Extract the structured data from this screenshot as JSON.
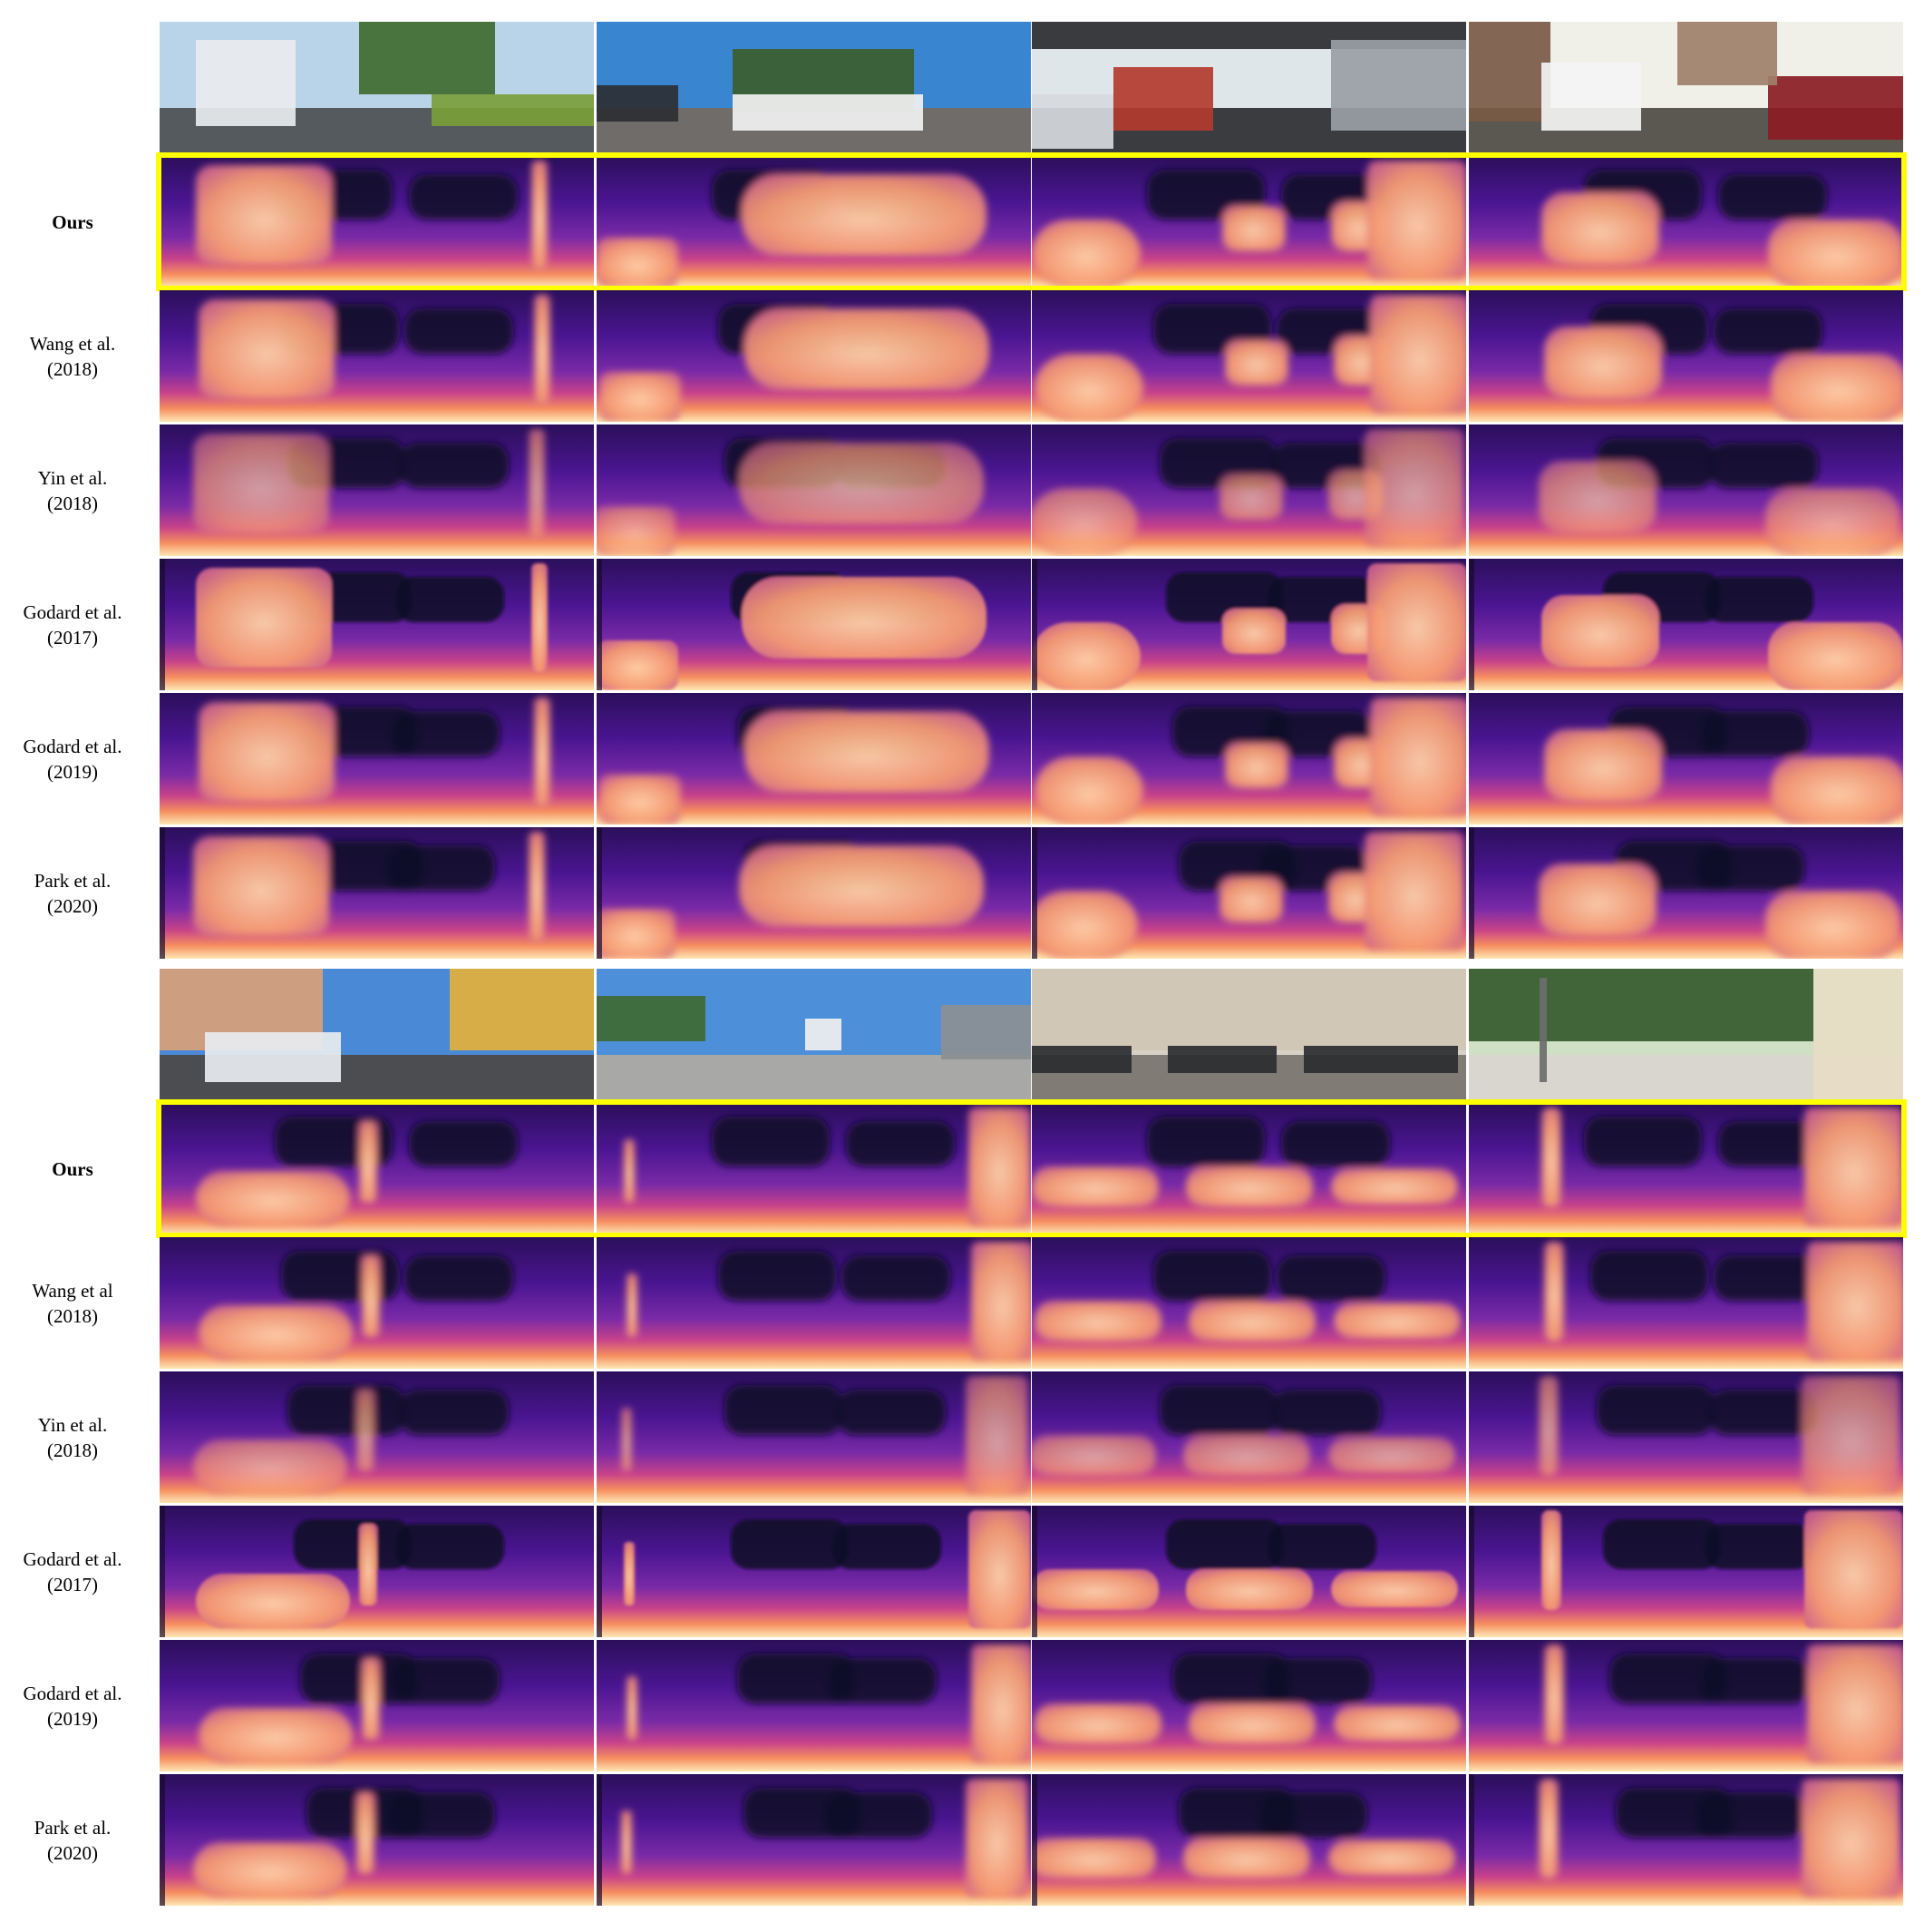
{
  "figure": {
    "groups": [
      {
        "rows": [
          {
            "label_line1": "",
            "label_line2": "",
            "kind": "rgb",
            "bold": false
          },
          {
            "label_line1": "Ours",
            "label_line2": "",
            "kind": "depth",
            "bold": true,
            "highlight": true
          },
          {
            "label_line1": "Wang et al.",
            "label_line2": "(2018)",
            "kind": "depth",
            "bold": false
          },
          {
            "label_line1": "Yin et al.",
            "label_line2": "(2018)",
            "kind": "depth",
            "bold": false
          },
          {
            "label_line1": "Godard et al.",
            "label_line2": "(2017)",
            "kind": "depth",
            "bold": false
          },
          {
            "label_line1": "Godard et al.",
            "label_line2": "(2019)",
            "kind": "depth",
            "bold": false
          },
          {
            "label_line1": "Park et al.",
            "label_line2": "(2020)",
            "kind": "depth",
            "bold": false
          }
        ]
      },
      {
        "rows": [
          {
            "label_line1": "",
            "label_line2": "",
            "kind": "rgb",
            "bold": false
          },
          {
            "label_line1": "Ours",
            "label_line2": "",
            "kind": "depth",
            "bold": true,
            "highlight": true
          },
          {
            "label_line1": "Wang et al",
            "label_line2": "(2018)",
            "kind": "depth",
            "bold": false
          },
          {
            "label_line1": "Yin et al.",
            "label_line2": "(2018)",
            "kind": "depth",
            "bold": false
          },
          {
            "label_line1": "Godard et al.",
            "label_line2": "(2017)",
            "kind": "depth",
            "bold": false
          },
          {
            "label_line1": "Godard et al.",
            "label_line2": "(2019)",
            "kind": "depth",
            "bold": false
          },
          {
            "label_line1": "Park et al.",
            "label_line2": "(2020)",
            "kind": "depth",
            "bold": false
          }
        ]
      }
    ],
    "highlight_color": "#ffff00",
    "depth_colormap": [
      "#0d0829",
      "#3b0f70",
      "#8c2981",
      "#de4968",
      "#fe9f6d",
      "#fcfdbf"
    ]
  }
}
